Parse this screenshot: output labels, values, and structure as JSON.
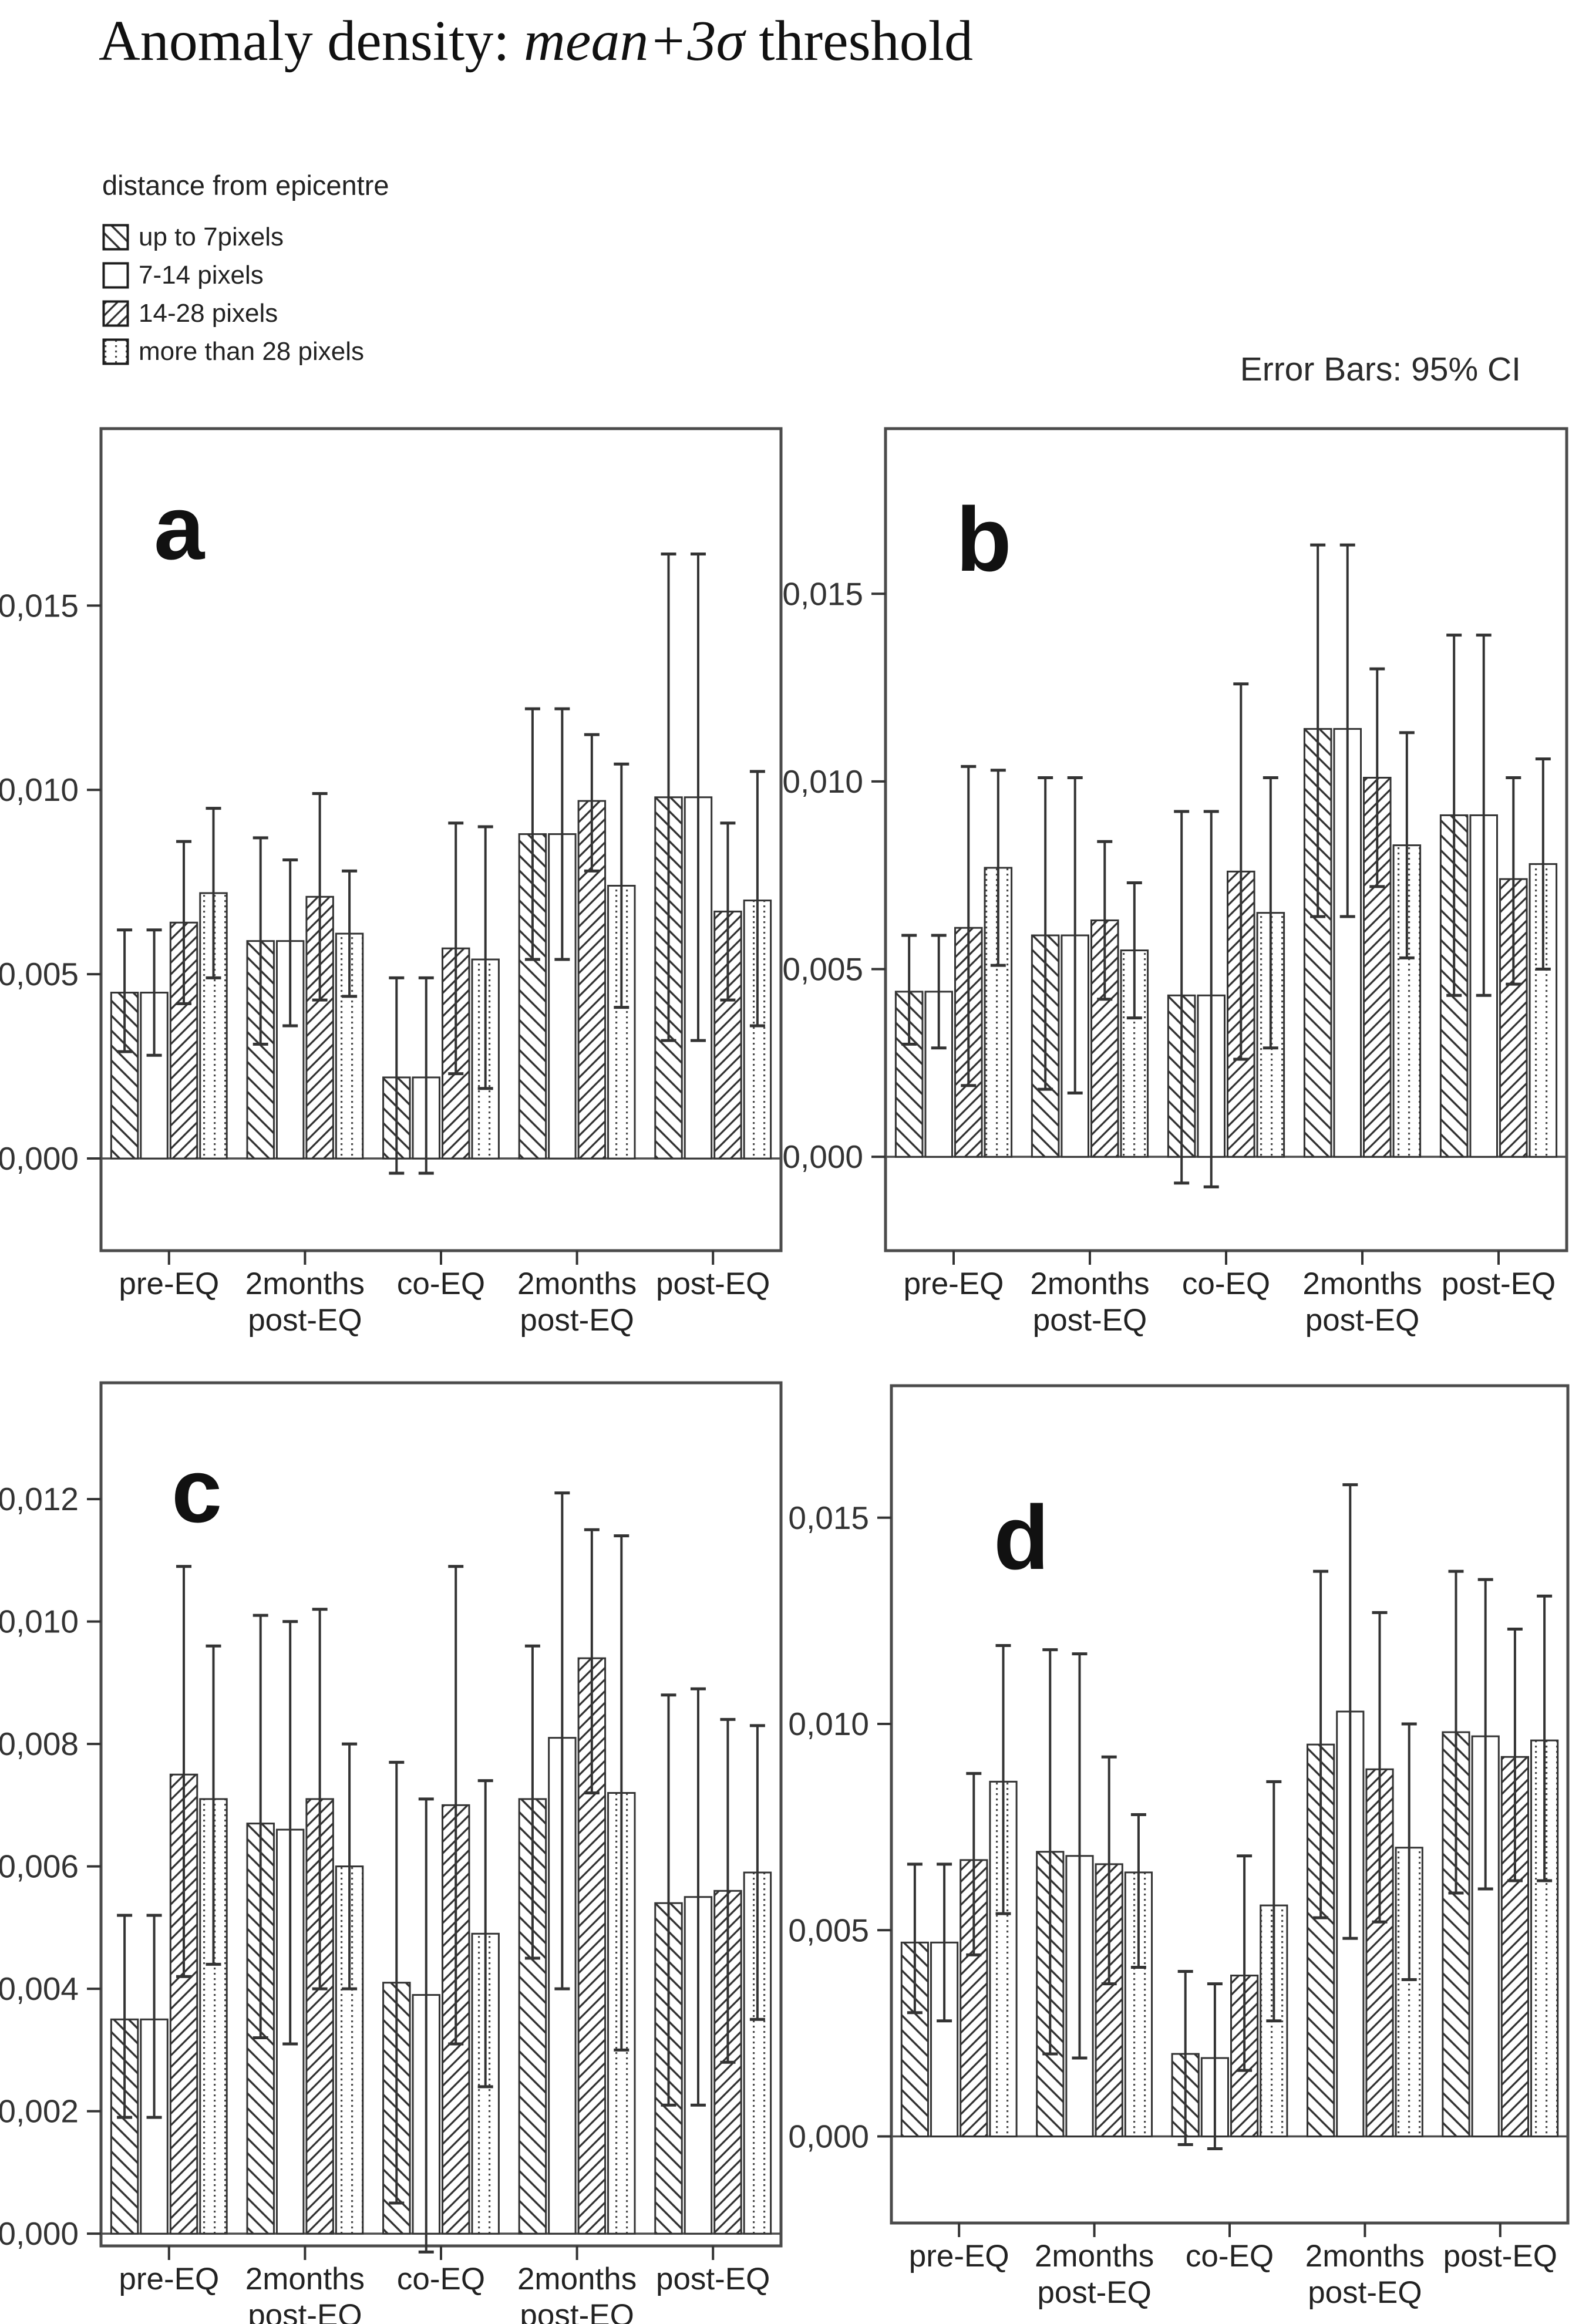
{
  "title": {
    "prefix": "Anomaly density: ",
    "italic": "mean+3σ",
    "suffix": " threshold"
  },
  "legend": {
    "title": "distance from epicentre",
    "items": [
      {
        "label": "up to 7pixels",
        "pattern": "hatch-backslash"
      },
      {
        "label": "7-14 pixels",
        "pattern": "plain"
      },
      {
        "label": "14-28 pixels",
        "pattern": "hatch-slash"
      },
      {
        "label": "more than 28 pixels",
        "pattern": "dots"
      }
    ]
  },
  "error_note": "Error Bars: 95% CI",
  "colors": {
    "ink": "#1e1e1e",
    "frame": "#4b4b4b",
    "bar_stroke": "#333333",
    "hatch": "#2f2f2f",
    "bar_fill": "#ffffff",
    "error_bar": "#333333"
  },
  "chart_data": [
    {
      "panel_label": "a",
      "type": "bar",
      "ylabel": "",
      "grid": false,
      "legend_position": "figure-top-left",
      "categories": [
        "pre-EQ",
        "2months\npost-EQ",
        "co-EQ",
        "2months\npost-EQ",
        "post-EQ"
      ],
      "ytick_values": [
        0.0,
        0.005,
        0.01,
        0.015
      ],
      "ytick_labels": [
        "0,000",
        "0,005",
        "0,010",
        "0,015"
      ],
      "ylim": [
        -0.0025,
        0.0198
      ],
      "series": [
        {
          "name": "up to 7pixels",
          "pattern": "hatch-backslash",
          "values": [
            0.0045,
            0.0059,
            0.0022,
            0.0088,
            0.0098
          ],
          "err_hi": [
            0.0062,
            0.0087,
            0.0049,
            0.0122,
            0.0164
          ],
          "err_lo": [
            0.0029,
            0.0031,
            -0.0004,
            0.0054,
            0.0032
          ]
        },
        {
          "name": "7-14 pixels",
          "pattern": "plain",
          "values": [
            0.0045,
            0.0059,
            0.0022,
            0.0088,
            0.0098
          ],
          "err_hi": [
            0.0062,
            0.0081,
            0.0049,
            0.0122,
            0.0164
          ],
          "err_lo": [
            0.0028,
            0.0036,
            -0.0004,
            0.0054,
            0.0032
          ]
        },
        {
          "name": "14-28 pixels",
          "pattern": "hatch-slash",
          "values": [
            0.0064,
            0.0071,
            0.0057,
            0.0097,
            0.0067
          ],
          "err_hi": [
            0.0086,
            0.0099,
            0.0091,
            0.0115,
            0.0091
          ],
          "err_lo": [
            0.0042,
            0.0043,
            0.0023,
            0.0078,
            0.0043
          ]
        },
        {
          "name": "more than 28 pixels",
          "pattern": "dots",
          "values": [
            0.0072,
            0.0061,
            0.0054,
            0.0074,
            0.007
          ],
          "err_hi": [
            0.0095,
            0.0078,
            0.009,
            0.0107,
            0.0105
          ],
          "err_lo": [
            0.0049,
            0.0044,
            0.0019,
            0.0041,
            0.0036
          ]
        }
      ]
    },
    {
      "panel_label": "b",
      "type": "bar",
      "ylabel": "",
      "grid": false,
      "categories": [
        "pre-EQ",
        "2months\npost-EQ",
        "co-EQ",
        "2months\npost-EQ",
        "post-EQ"
      ],
      "ytick_values": [
        0.0,
        0.005,
        0.01,
        0.015
      ],
      "ytick_labels": [
        "0,000",
        "0,005",
        "0,010",
        "0,015"
      ],
      "ylim": [
        -0.0025,
        0.0194
      ],
      "series": [
        {
          "name": "up to 7pixels",
          "pattern": "hatch-backslash",
          "values": [
            0.0044,
            0.0059,
            0.0043,
            0.0114,
            0.0091
          ],
          "err_hi": [
            0.0059,
            0.0101,
            0.0092,
            0.0163,
            0.0139
          ],
          "err_lo": [
            0.003,
            0.0018,
            -0.0007,
            0.0064,
            0.0043
          ]
        },
        {
          "name": "7-14 pixels",
          "pattern": "plain",
          "values": [
            0.0044,
            0.0059,
            0.0043,
            0.0114,
            0.0091
          ],
          "err_hi": [
            0.0059,
            0.0101,
            0.0092,
            0.0163,
            0.0139
          ],
          "err_lo": [
            0.0029,
            0.0017,
            -0.0008,
            0.0064,
            0.0043
          ]
        },
        {
          "name": "14-28 pixels",
          "pattern": "hatch-slash",
          "values": [
            0.0061,
            0.0063,
            0.0076,
            0.0101,
            0.0074
          ],
          "err_hi": [
            0.0104,
            0.0084,
            0.0126,
            0.013,
            0.0101
          ],
          "err_lo": [
            0.0019,
            0.0042,
            0.0026,
            0.0072,
            0.0046
          ]
        },
        {
          "name": "more than 28 pixels",
          "pattern": "dots",
          "values": [
            0.0077,
            0.0055,
            0.0065,
            0.0083,
            0.0078
          ],
          "err_hi": [
            0.0103,
            0.0073,
            0.0101,
            0.0113,
            0.0106
          ],
          "err_lo": [
            0.0051,
            0.0037,
            0.0029,
            0.0053,
            0.005
          ]
        }
      ]
    },
    {
      "panel_label": "c",
      "type": "bar",
      "ylabel": "",
      "grid": false,
      "categories": [
        "pre-EQ",
        "2months\npost-EQ",
        "co-EQ",
        "2months\npost-EQ",
        "post-EQ"
      ],
      "ytick_values": [
        0.0,
        0.002,
        0.004,
        0.006,
        0.008,
        0.01,
        0.012
      ],
      "ytick_labels": [
        "0,000",
        "0,002",
        "0,004",
        "0,006",
        "0,008",
        "0,010",
        "0,012"
      ],
      "ylim": [
        -0.0002,
        0.0139
      ],
      "series": [
        {
          "name": "up to 7pixels",
          "pattern": "hatch-backslash",
          "values": [
            0.0035,
            0.0067,
            0.0041,
            0.0071,
            0.0054
          ],
          "err_hi": [
            0.0052,
            0.0101,
            0.0077,
            0.0096,
            0.0088
          ],
          "err_lo": [
            0.0019,
            0.0032,
            0.0005,
            0.0045,
            0.0021
          ]
        },
        {
          "name": "7-14 pixels",
          "pattern": "plain",
          "values": [
            0.0035,
            0.0066,
            0.0039,
            0.0081,
            0.0055
          ],
          "err_hi": [
            0.0052,
            0.01,
            0.0071,
            0.0121,
            0.0089
          ],
          "err_lo": [
            0.0019,
            0.0031,
            -0.0003,
            0.004,
            0.0021
          ]
        },
        {
          "name": "14-28 pixels",
          "pattern": "hatch-slash",
          "values": [
            0.0075,
            0.0071,
            0.007,
            0.0094,
            0.0056
          ],
          "err_hi": [
            0.0109,
            0.0102,
            0.0109,
            0.0115,
            0.0084
          ],
          "err_lo": [
            0.0042,
            0.004,
            0.0031,
            0.0072,
            0.0028
          ]
        },
        {
          "name": "more than 28 pixels",
          "pattern": "dots",
          "values": [
            0.0071,
            0.006,
            0.0049,
            0.0072,
            0.0059
          ],
          "err_hi": [
            0.0096,
            0.008,
            0.0074,
            0.0114,
            0.0083
          ],
          "err_lo": [
            0.0044,
            0.004,
            0.0024,
            0.003,
            0.0035
          ]
        }
      ]
    },
    {
      "panel_label": "d",
      "type": "bar",
      "ylabel": "",
      "grid": false,
      "categories": [
        "pre-EQ",
        "2months\npost-EQ",
        "co-EQ",
        "2months\npost-EQ",
        "post-EQ"
      ],
      "ytick_values": [
        0.0,
        0.005,
        0.01,
        0.015
      ],
      "ytick_labels": [
        "0,000",
        "0,005",
        "0,010",
        "0,015"
      ],
      "ylim": [
        -0.0021,
        0.0182
      ],
      "series": [
        {
          "name": "up to 7pixels",
          "pattern": "hatch-backslash",
          "values": [
            0.0047,
            0.0069,
            0.002,
            0.0095,
            0.0098
          ],
          "err_hi": [
            0.0066,
            0.0118,
            0.004,
            0.0137,
            0.0137
          ],
          "err_lo": [
            0.003,
            0.002,
            -0.0002,
            0.0053,
            0.0059
          ]
        },
        {
          "name": "7-14 pixels",
          "pattern": "plain",
          "values": [
            0.0047,
            0.0068,
            0.0019,
            0.0103,
            0.0097
          ],
          "err_hi": [
            0.0066,
            0.0117,
            0.0037,
            0.0158,
            0.0135
          ],
          "err_lo": [
            0.0028,
            0.0019,
            -0.0003,
            0.0048,
            0.006
          ]
        },
        {
          "name": "14-28 pixels",
          "pattern": "hatch-slash",
          "values": [
            0.0067,
            0.0066,
            0.0039,
            0.0089,
            0.0092
          ],
          "err_hi": [
            0.0088,
            0.0092,
            0.0068,
            0.0127,
            0.0123
          ],
          "err_lo": [
            0.0044,
            0.0037,
            0.0016,
            0.0052,
            0.0062
          ]
        },
        {
          "name": "more than 28 pixels",
          "pattern": "dots",
          "values": [
            0.0086,
            0.0064,
            0.0056,
            0.007,
            0.0096
          ],
          "err_hi": [
            0.0119,
            0.0078,
            0.0086,
            0.01,
            0.0131
          ],
          "err_lo": [
            0.0054,
            0.0041,
            0.0028,
            0.0038,
            0.0062
          ]
        }
      ]
    }
  ]
}
